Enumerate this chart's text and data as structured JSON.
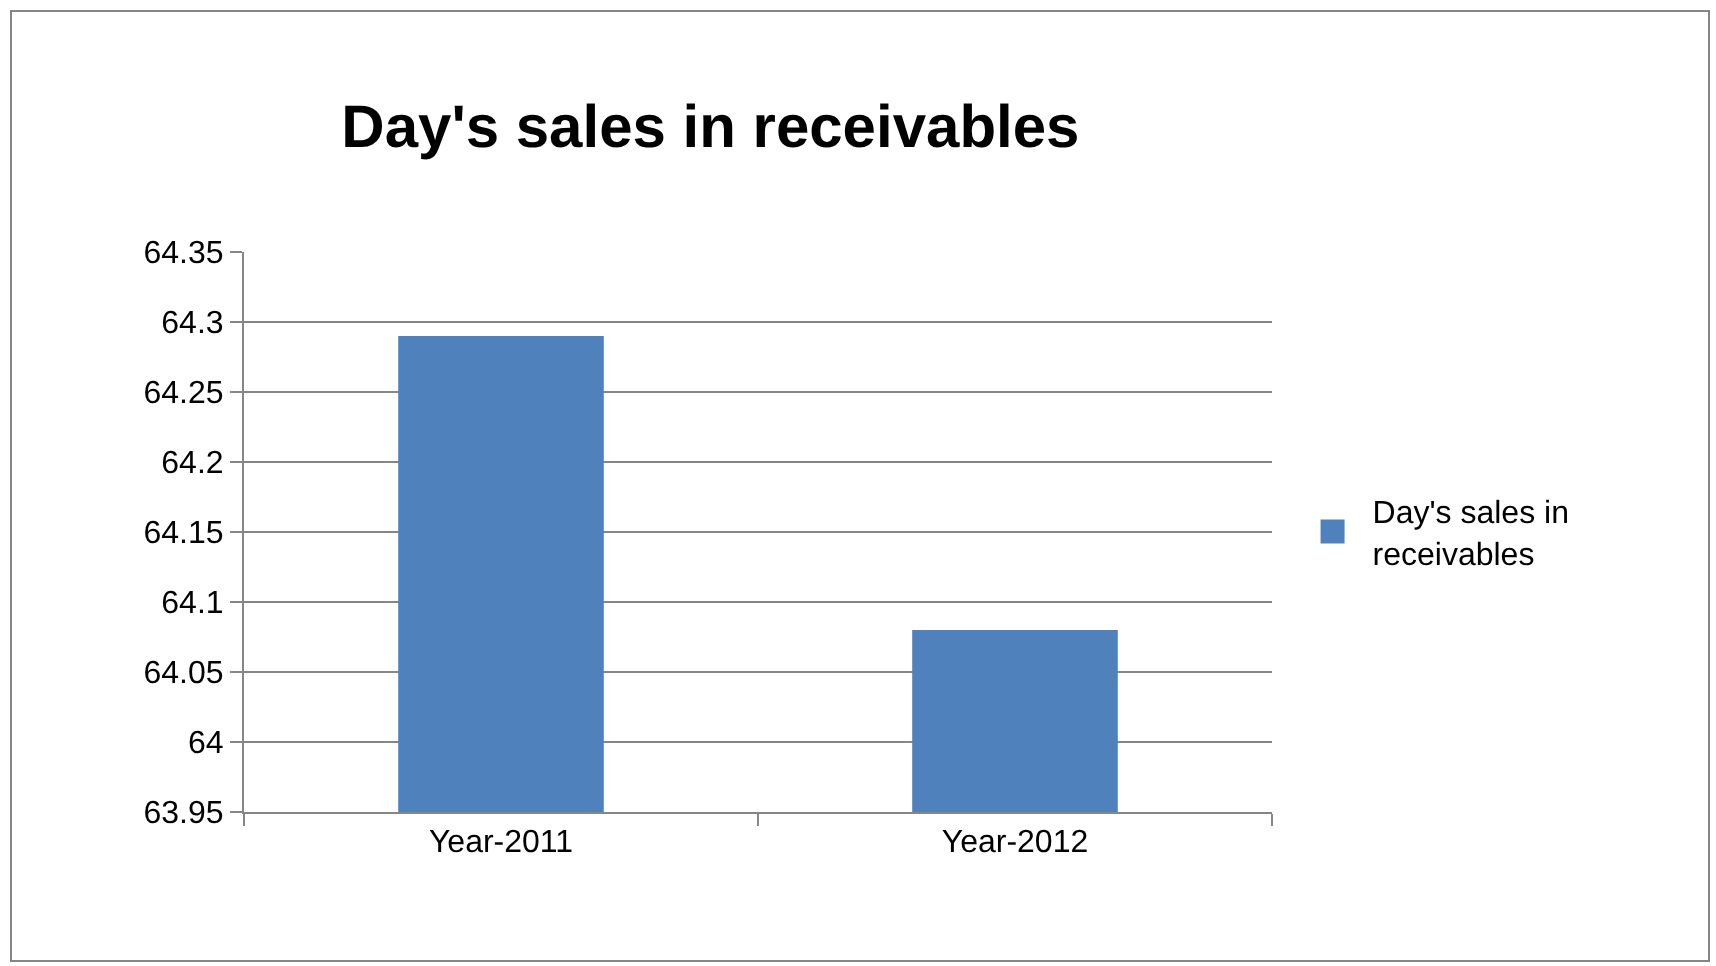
{
  "chart_data": {
    "type": "bar",
    "title": "Day's sales in receivables",
    "categories": [
      "Year-2011",
      "Year-2012"
    ],
    "series": [
      {
        "name": "Day's sales in receivables",
        "color": "#4f81bd",
        "values": [
          64.29,
          64.08
        ]
      }
    ],
    "ylim": [
      63.95,
      64.35
    ],
    "yticks": [
      63.95,
      64,
      64.05,
      64.1,
      64.15,
      64.2,
      64.25,
      64.3,
      64.35
    ],
    "grid": "y",
    "legend": "right"
  }
}
